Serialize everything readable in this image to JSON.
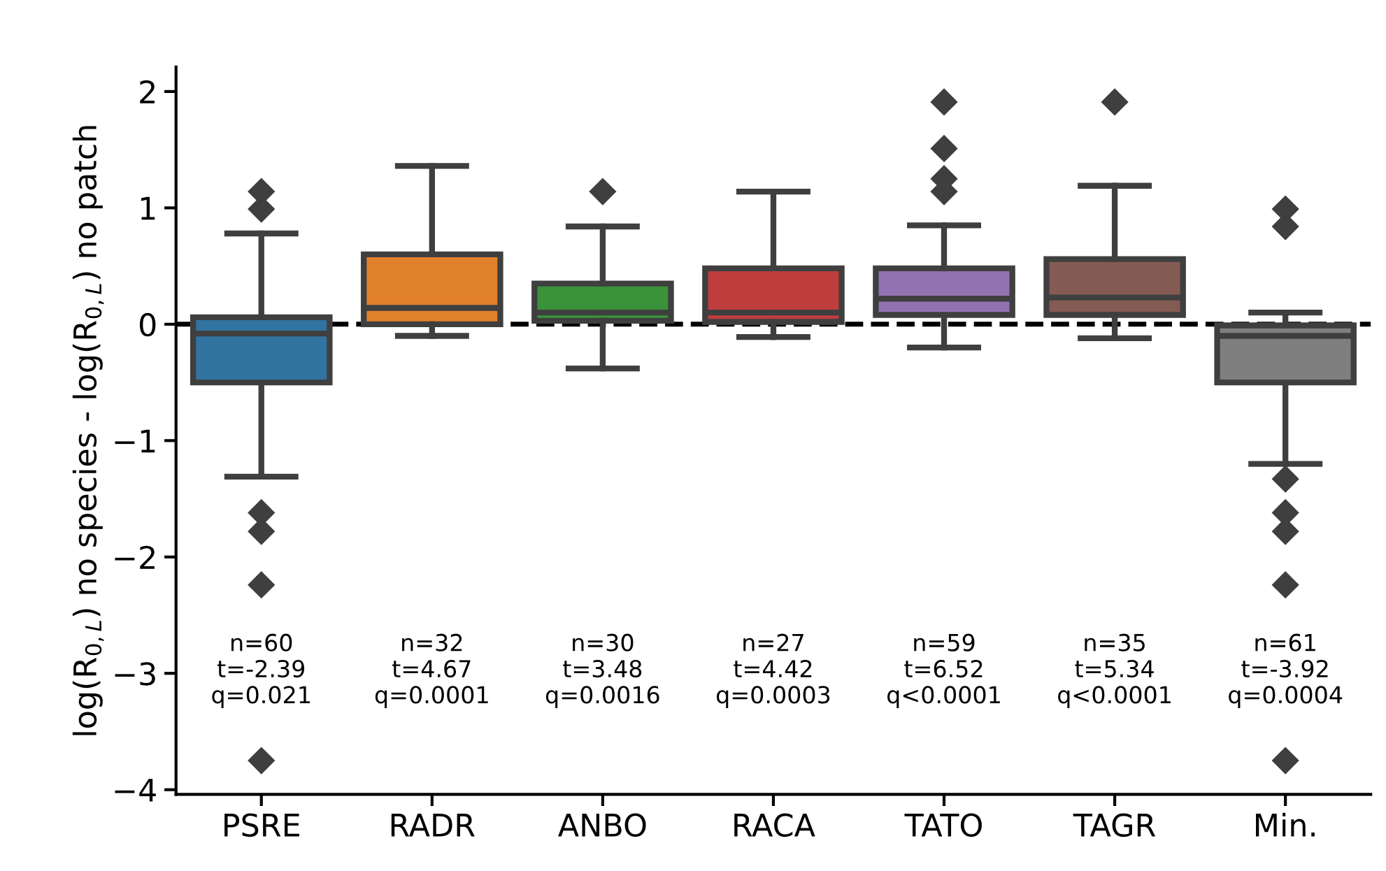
{
  "chart_data": {
    "type": "box",
    "ylabel": "log(R$_{0,L}$) no species - log(R$_{0,L}$) no patch",
    "categories": [
      "PSRE",
      "RADR",
      "ANBO",
      "RACA",
      "TATO",
      "TAGR",
      "Min."
    ],
    "colors": [
      "#3274a1",
      "#e1812c",
      "#3a923a",
      "#c03d3e",
      "#9372b2",
      "#845b53",
      "#7f7f7f"
    ],
    "boxes": [
      {
        "low": -1.31,
        "q1": -0.5,
        "median": -0.08,
        "q3": 0.06,
        "high": 0.78,
        "outliers": [
          1.14,
          0.99,
          -1.62,
          -1.78,
          -2.24,
          -3.75
        ]
      },
      {
        "low": -0.1,
        "q1": 0.0,
        "median": 0.14,
        "q3": 0.6,
        "high": 1.36
      },
      {
        "low": -0.38,
        "q1": 0.03,
        "median": 0.1,
        "q3": 0.35,
        "high": 0.84,
        "outliers": [
          1.14
        ]
      },
      {
        "low": -0.11,
        "q1": 0.02,
        "median": 0.1,
        "q3": 0.48,
        "high": 1.14
      },
      {
        "low": -0.2,
        "q1": 0.08,
        "median": 0.22,
        "q3": 0.48,
        "high": 0.85,
        "outliers": [
          1.91,
          1.51,
          1.25,
          1.14
        ]
      },
      {
        "low": -0.12,
        "q1": 0.08,
        "median": 0.23,
        "q3": 0.56,
        "high": 1.19,
        "outliers": [
          1.91
        ]
      },
      {
        "low": -1.2,
        "q1": -0.5,
        "median": -0.1,
        "q3": -0.01,
        "high": 0.1,
        "outliers": [
          0.99,
          0.84,
          -1.33,
          -1.62,
          -1.78,
          -2.24,
          -3.75
        ]
      }
    ],
    "ylim": [
      -4.04,
      2.21
    ],
    "yticks": [
      2,
      1,
      0,
      -1,
      -2,
      -3,
      -4
    ],
    "ref_lines": [
      {
        "axis": "y",
        "value": 0,
        "color": "#000000",
        "line_style": "dashed"
      }
    ],
    "marker": "diamond",
    "grid": false,
    "legend": false,
    "annotations": [
      "n=60\nt=-2.39\nq=0.021",
      "n=32\nt=4.67\nq=0.0001",
      "n=30\nt=3.48\nq=0.0016",
      "n=27\nt=4.42\nq=0.0003",
      "n=59\nt=6.52\nq<0.0001",
      "n=35\nt=5.34\nq<0.0001",
      "n=61\nt=-3.92\nq=0.0004"
    ]
  }
}
